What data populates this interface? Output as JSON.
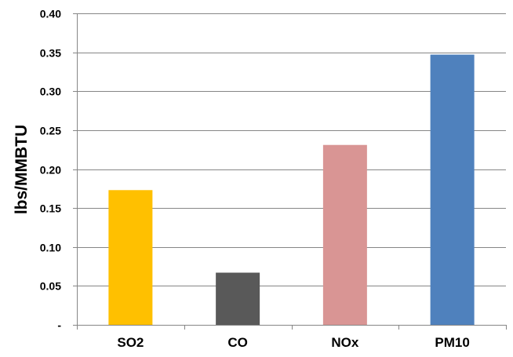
{
  "chart_data": {
    "type": "bar",
    "title": "",
    "xlabel": "",
    "ylabel": "lbs/MMBTU",
    "categories": [
      "SO2",
      "CO",
      "NOx",
      "PM10"
    ],
    "values": [
      0.173,
      0.067,
      0.231,
      0.347
    ],
    "colors": [
      "#FFC000",
      "#595959",
      "#D99594",
      "#4F81BD"
    ],
    "ylim": [
      0,
      0.4
    ],
    "y_ticks": [
      0,
      0.05,
      0.1,
      0.15,
      0.2,
      0.25,
      0.3,
      0.35,
      0.4
    ],
    "y_tick_labels": [
      "-",
      "0.05",
      "0.10",
      "0.15",
      "0.20",
      "0.25",
      "0.30",
      "0.35",
      "0.40"
    ],
    "grid": "horizontal",
    "gridline_color": "#868686",
    "legend": "none"
  }
}
